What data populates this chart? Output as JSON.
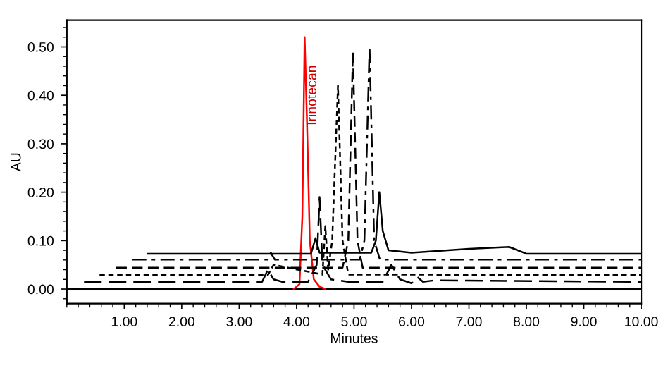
{
  "chart_data": {
    "type": "line",
    "xlabel": "Minutes",
    "ylabel": "AU",
    "annotations": [
      {
        "text": "Irinotecan",
        "x": 4.28,
        "y": 0.4
      }
    ],
    "xlim": [
      0,
      10
    ],
    "ylim": [
      -0.03,
      0.555
    ],
    "xticks": [
      {
        "value": 1,
        "label": "1.00"
      },
      {
        "value": 2,
        "label": "2.00"
      },
      {
        "value": 3,
        "label": "3.00"
      },
      {
        "value": 4,
        "label": "4.00"
      },
      {
        "value": 5,
        "label": "5.00"
      },
      {
        "value": 6,
        "label": "6.00"
      },
      {
        "value": 7,
        "label": "7.00"
      },
      {
        "value": 8,
        "label": "8.00"
      },
      {
        "value": 9,
        "label": "9.00"
      },
      {
        "value": 10,
        "label": "10.00"
      }
    ],
    "yticks": [
      {
        "value": 0,
        "label": "0.00"
      },
      {
        "value": 0.1,
        "label": "0.10"
      },
      {
        "value": 0.2,
        "label": "0.20"
      },
      {
        "value": 0.3,
        "label": "0.30"
      },
      {
        "value": 0.4,
        "label": "0.40"
      },
      {
        "value": 0.5,
        "label": "0.50"
      }
    ],
    "grid": false,
    "legend": false,
    "series": [
      {
        "color": "#000000",
        "line_style": "solid",
        "x": [
          0,
          10
        ],
        "values": [
          0,
          0
        ]
      },
      {
        "color": "#ff0000",
        "line_style": "solid",
        "x": [
          3.95,
          4.05,
          4.1,
          4.14,
          4.18,
          4.23,
          4.3,
          4.4,
          4.5
        ],
        "values": [
          0,
          0.01,
          0.15,
          0.52,
          0.35,
          0.1,
          0.02,
          0.005,
          0
        ]
      },
      {
        "color": "#000000",
        "line_style": "longdash",
        "x": [
          0.3,
          3.4,
          3.5,
          3.6,
          3.75,
          4.2,
          4.35,
          4.4,
          4.45,
          4.6,
          4.9,
          5.5,
          5.65,
          5.8,
          6.0,
          6.1,
          6.2,
          6.4,
          10
        ],
        "values": [
          0.015,
          0.015,
          0.04,
          0.02,
          0.015,
          0.015,
          0.05,
          0.19,
          0.05,
          0.02,
          0.015,
          0.015,
          0.05,
          0.02,
          0.012,
          0.025,
          0.015,
          0.018,
          0.015
        ]
      },
      {
        "color": "#000000",
        "line_style": "dotted",
        "x": [
          0.57,
          3.5,
          3.6,
          4.45,
          4.5,
          4.55,
          4.62,
          4.72,
          4.8,
          4.9,
          10
        ],
        "values": [
          0.029,
          0.029,
          0.05,
          0.03,
          0.13,
          0.04,
          0.1,
          0.42,
          0.1,
          0.03,
          0.029
        ]
      },
      {
        "color": "#000000",
        "line_style": "dashed",
        "x": [
          0.86,
          4.8,
          4.9,
          4.98,
          5.06,
          5.15,
          10
        ],
        "values": [
          0.044,
          0.044,
          0.1,
          0.49,
          0.1,
          0.044,
          0.044
        ]
      },
      {
        "color": "#000000",
        "line_style": "dashdot",
        "x": [
          1.14,
          3.5,
          3.55,
          3.62,
          5.1,
          5.18,
          5.27,
          5.35,
          5.45,
          10
        ],
        "values": [
          0.061,
          0.061,
          0.075,
          0.061,
          0.061,
          0.1,
          0.5,
          0.1,
          0.061,
          0.061
        ]
      },
      {
        "color": "#000000",
        "line_style": "solid",
        "x": [
          1.41,
          4.25,
          4.33,
          4.4,
          5.3,
          5.38,
          5.44,
          5.5,
          5.6,
          6.0,
          7.0,
          7.7,
          8.0,
          10
        ],
        "values": [
          0.073,
          0.073,
          0.105,
          0.075,
          0.075,
          0.1,
          0.2,
          0.12,
          0.08,
          0.075,
          0.083,
          0.087,
          0.073,
          0.073
        ]
      }
    ]
  }
}
